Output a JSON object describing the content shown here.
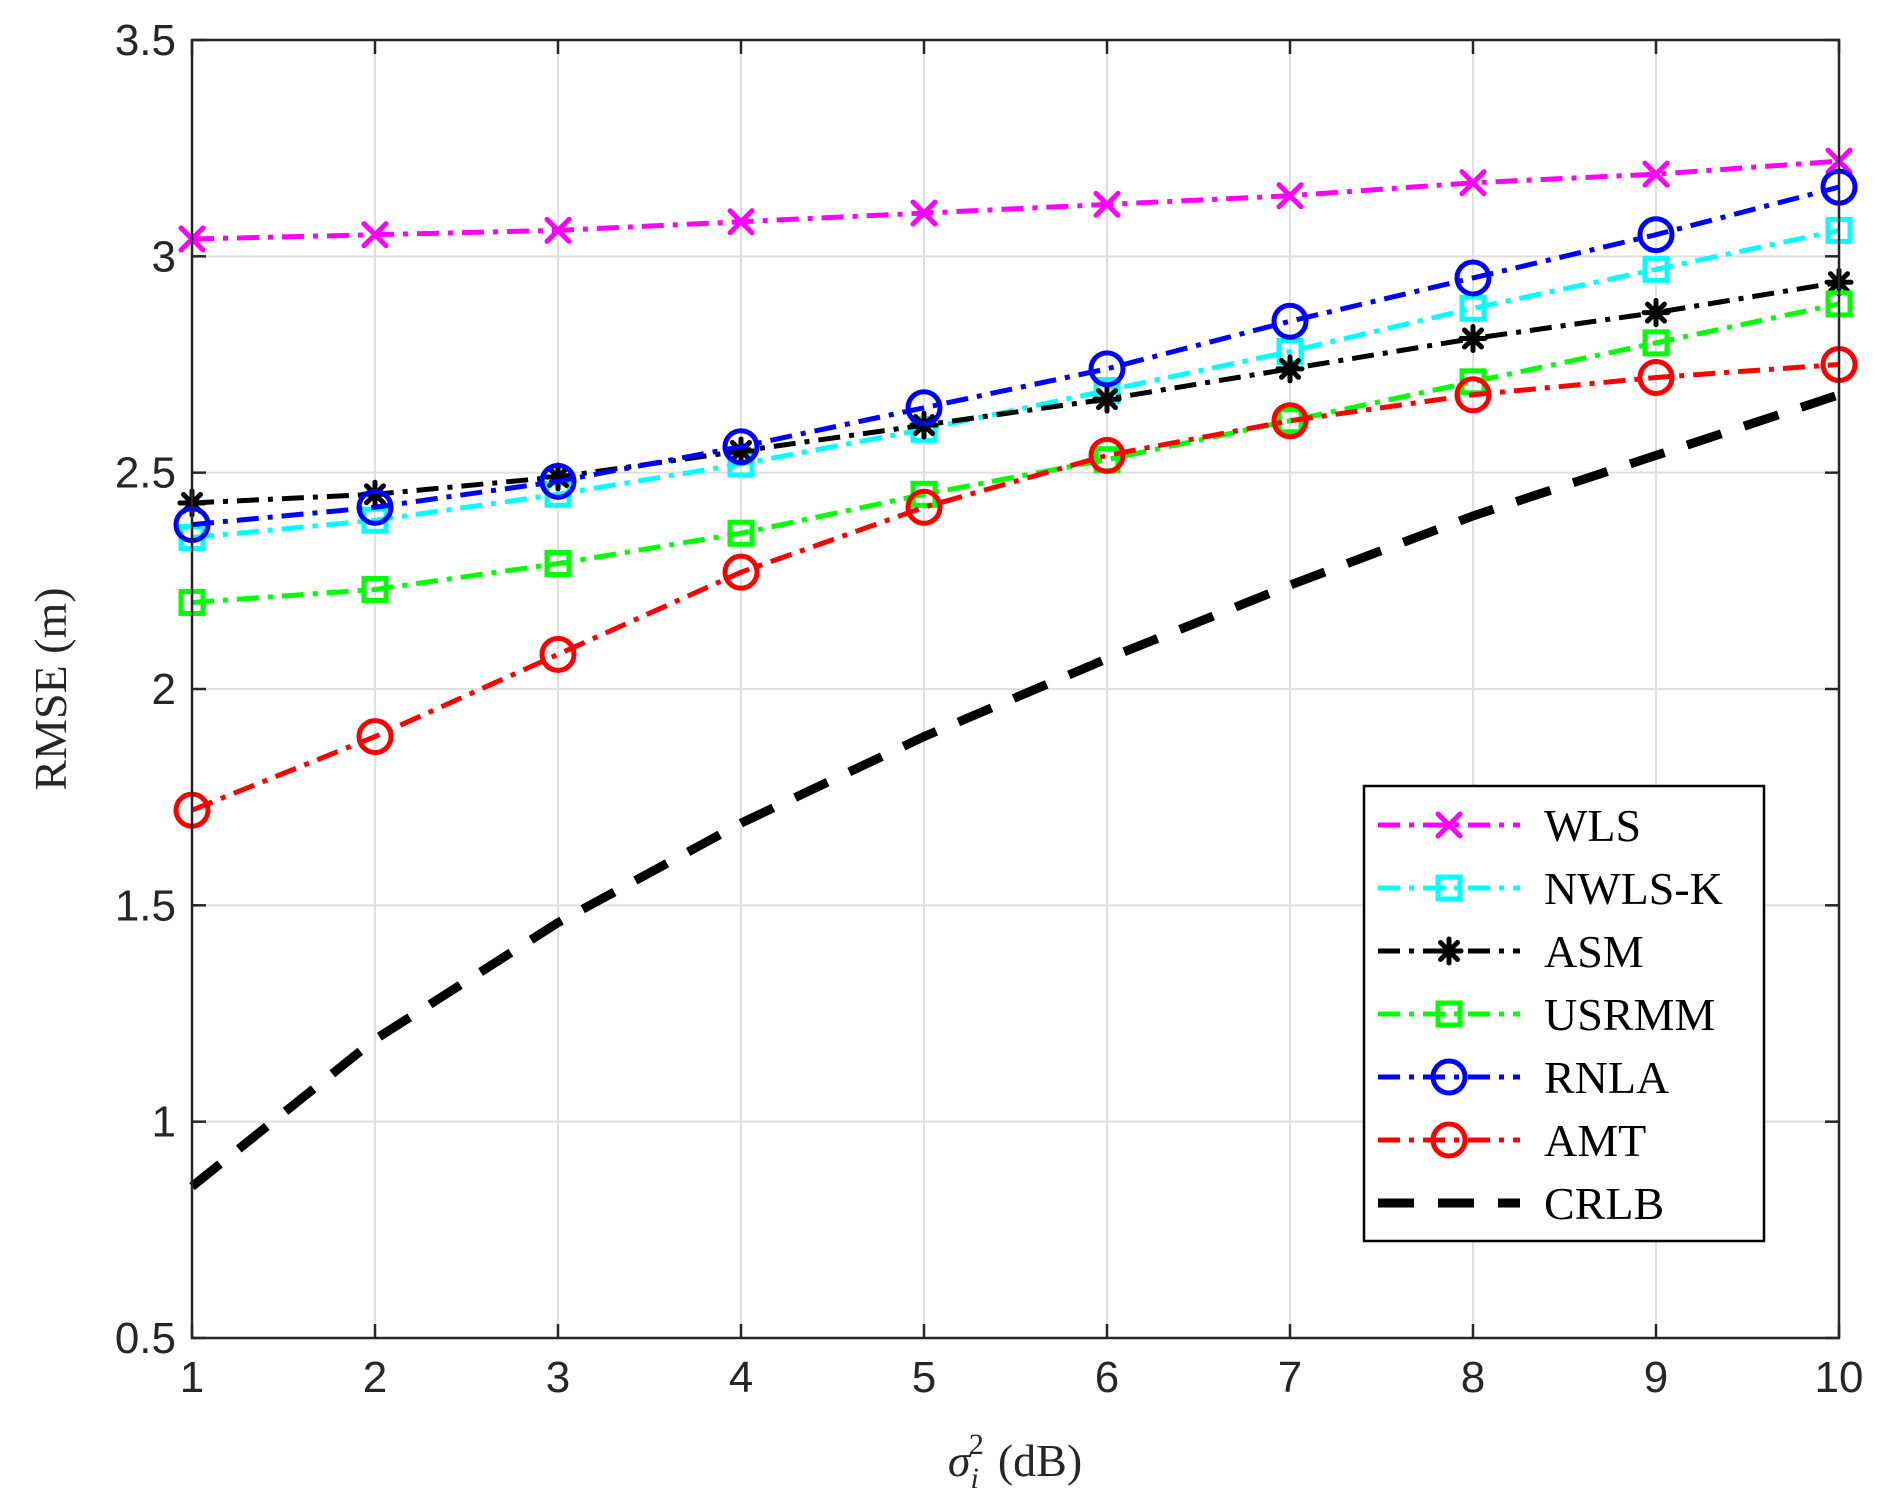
{
  "chart_data": {
    "type": "line",
    "title": "",
    "xlabel": "σ_i^2 (dB)",
    "xlabel_parts": {
      "symbol": "σ",
      "subscript": "i",
      "superscript": "2",
      "unit": "(dB)"
    },
    "ylabel": "RMSE (m)",
    "xlim": [
      1,
      10
    ],
    "ylim": [
      0.5,
      3.5
    ],
    "grid": true,
    "legend_position": "lower-right",
    "x": [
      1,
      2,
      3,
      4,
      5,
      6,
      7,
      8,
      9,
      10
    ],
    "x_ticks": [
      "1",
      "2",
      "3",
      "4",
      "5",
      "6",
      "7",
      "8",
      "9",
      "10"
    ],
    "y_ticks": [
      0.5,
      1,
      1.5,
      2,
      2.5,
      3,
      3.5
    ],
    "y_tick_labels": [
      "0.5",
      "1",
      "1.5",
      "2",
      "2.5",
      "3",
      "3.5"
    ],
    "series": [
      {
        "name": "WLS",
        "color": "#ff00ff",
        "marker": "x",
        "line": "dashdot",
        "values": [
          3.04,
          3.05,
          3.06,
          3.08,
          3.1,
          3.12,
          3.14,
          3.17,
          3.19,
          3.22
        ]
      },
      {
        "name": "NWLS-K",
        "color": "#00ffff",
        "marker": "square",
        "line": "dashdot",
        "values": [
          2.35,
          2.39,
          2.45,
          2.52,
          2.6,
          2.69,
          2.78,
          2.88,
          2.97,
          3.06
        ]
      },
      {
        "name": "ASM",
        "color": "#000000",
        "marker": "asterisk",
        "line": "dashdot",
        "values": [
          2.43,
          2.45,
          2.49,
          2.55,
          2.61,
          2.67,
          2.74,
          2.81,
          2.87,
          2.94
        ]
      },
      {
        "name": "USRMM",
        "color": "#00ff00",
        "marker": "square",
        "line": "dashdot",
        "values": [
          2.2,
          2.23,
          2.29,
          2.36,
          2.45,
          2.53,
          2.62,
          2.71,
          2.8,
          2.89
        ]
      },
      {
        "name": "RNLA",
        "color": "#0000ff",
        "marker": "circle",
        "line": "dashdot",
        "values": [
          2.38,
          2.42,
          2.48,
          2.56,
          2.65,
          2.74,
          2.85,
          2.95,
          3.05,
          3.16
        ]
      },
      {
        "name": "AMT",
        "color": "#ff0000",
        "marker": "circle",
        "line": "dashdot",
        "values": [
          1.72,
          1.89,
          2.08,
          2.27,
          2.42,
          2.54,
          2.62,
          2.68,
          2.72,
          2.75
        ]
      },
      {
        "name": "CRLB",
        "color": "#000000",
        "marker": "none",
        "line": "dashed",
        "values": [
          0.85,
          1.19,
          1.46,
          1.69,
          1.89,
          2.07,
          2.24,
          2.4,
          2.54,
          2.68
        ]
      }
    ]
  }
}
